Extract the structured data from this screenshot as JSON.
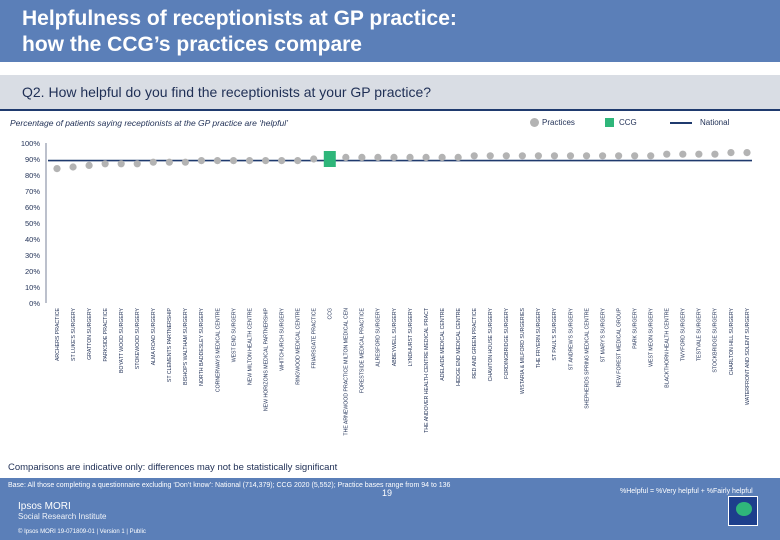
{
  "header": {
    "title_line1": "Helpfulness of receptionists at GP practice:",
    "title_line2": "how the CCG’s practices compare"
  },
  "question": "Q2. How helpful do you find the receptionists at your GP practice?",
  "subtitle": "Percentage of patients saying receptionists at the GP practice are ‘helpful’",
  "legend": {
    "practices": "Practices",
    "ccg": "CCG",
    "national": "National"
  },
  "colors": {
    "practice": "#b3b3b3",
    "ccg": "#2fb67a",
    "national": "#1f3a6e",
    "header_bg": "#5b7fb8"
  },
  "chart_data": {
    "type": "scatter",
    "ylim": [
      0,
      100
    ],
    "ytick_labels": [
      "0%",
      "10%",
      "20%",
      "30%",
      "40%",
      "50%",
      "60%",
      "70%",
      "80%",
      "90%",
      "100%"
    ],
    "national_value": 89,
    "categories": [
      "ARCHERS PRACTICE",
      "ST LUKE'S SURGERY",
      "GRATTON SURGERY",
      "PARKSIDE PRACTICE",
      "BOYATT WOOD SURGERY",
      "STOKEWOOD SURGERY",
      "ALMA ROAD SURGERY",
      "ST CLEMENTS PARTNERSHIP",
      "BISHOPS WALTHAM SURGERY",
      "NORTH BADDESLEY SURGERY",
      "CORNERWAYS MEDICAL CENTRE",
      "WEST END SURGERY",
      "NEW MILTON HEALTH CENTRE",
      "NEW HORIZONS MEDICAL PARTNERSHIP",
      "WHITCHURCH SURGERY",
      "RINGWOOD MEDICAL CENTRE",
      "FRIARSGATE PRACTICE",
      "CCG",
      "THE ARNEWOOD PRACTICE MILTON MEDICAL CEN",
      "FORESTSIDE MEDICAL PRACTICE",
      "ALRESFORD SURGERY",
      "ABBEYWELL SURGERY",
      "LYNDHURST SURGERY",
      "THE ANDOVER HEALTH CENTRE MEDICAL PRACT",
      "ADELAIDE MEDICAL CENTRE",
      "HEDGE END MEDICAL CENTRE",
      "RED AND GREEN PRACTICE",
      "CHAWTON HOUSE SURGERY",
      "FORDINGBRIDGE SURGERY",
      "WISTARIA & MILFORD SURGERIES",
      "THE FRYERN SURGERY",
      "ST PAUL'S SURGERY",
      "ST ANDREW'S SURGERY",
      "SHEPHERDS SPRING MEDICAL CENTRE",
      "ST MARY'S SURGERY",
      "NEW FOREST MEDICAL GROUP",
      "PARK SURGERY",
      "WEST MEON SURGERY",
      "BLACKTHORN HEALTH CENTRE",
      "TWYFORD SURGERY",
      "TESTVALE SURGERY",
      "STOCKBRIDGE SURGERY",
      "CHARLTON HILL SURGERY",
      "WATERFRONT AND SOLENT SURGERY"
    ],
    "values": [
      84,
      85,
      86,
      87,
      87,
      87,
      88,
      88,
      88,
      89,
      89,
      89,
      89,
      89,
      89,
      89,
      90,
      90,
      91,
      91,
      91,
      91,
      91,
      91,
      91,
      91,
      92,
      92,
      92,
      92,
      92,
      92,
      92,
      92,
      92,
      92,
      92,
      92,
      93,
      93,
      93,
      93,
      94,
      94
    ]
  },
  "note": "Comparisons are indicative only: differences may not be statistically significant",
  "footer": {
    "base": "Base: All those completing a questionnaire excluding ‘Don’t know’: National (714,379); CCG 2020 (5,552); Practice bases range from 94 to 136",
    "definition": "%Helpful = %Very helpful + %Fairly helpful",
    "page": "19",
    "logo_name": "Ipsos MORI",
    "logo_sub": "Social Research Institute",
    "copyright": "© Ipsos MORI     19-071809-01 | Version 1 | Public"
  }
}
